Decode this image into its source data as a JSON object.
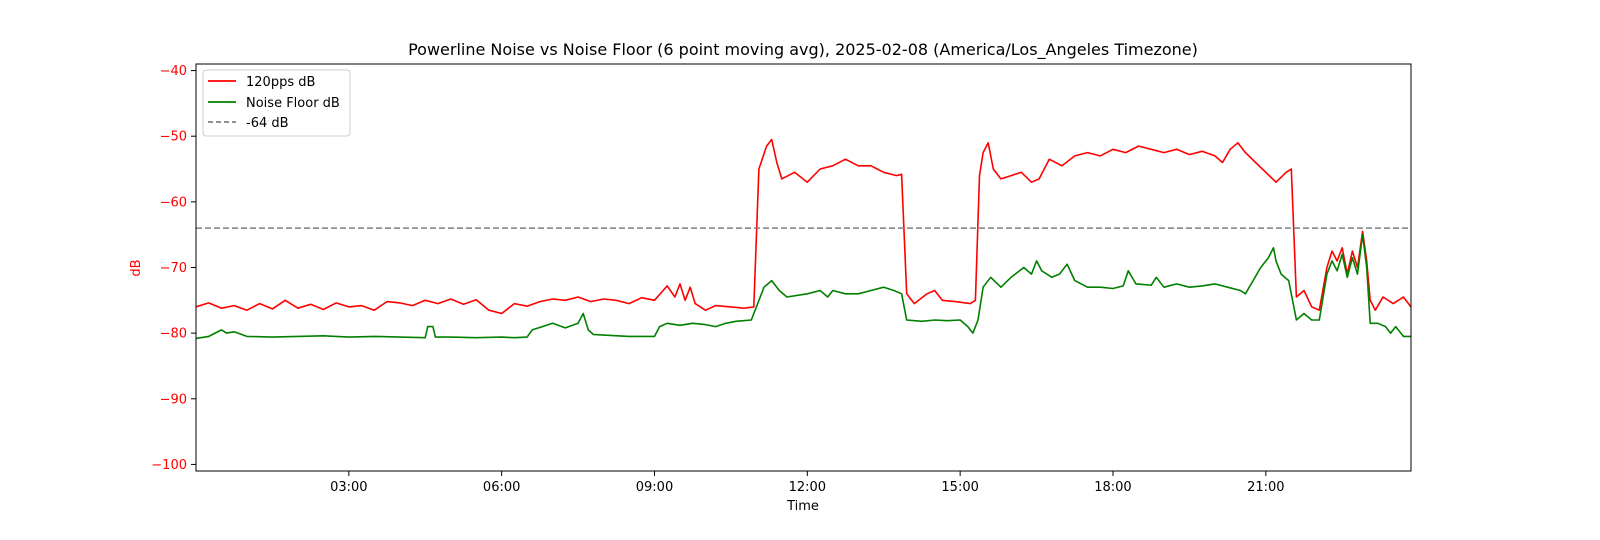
{
  "chart_data": {
    "type": "line",
    "title": "Powerline Noise vs Noise Floor (6 point moving avg), 2025-02-08 (America/Los_Angeles Timezone)",
    "xlabel": "Time",
    "ylabel": "dB",
    "x_unit": "hour of day",
    "xlim": [
      0.0,
      23.85
    ],
    "ylim": [
      -101,
      -39
    ],
    "x_ticks": [
      {
        "value": 3,
        "label": "03:00"
      },
      {
        "value": 6,
        "label": "06:00"
      },
      {
        "value": 9,
        "label": "09:00"
      },
      {
        "value": 12,
        "label": "12:00"
      },
      {
        "value": 15,
        "label": "15:00"
      },
      {
        "value": 18,
        "label": "18:00"
      },
      {
        "value": 21,
        "label": "21:00"
      }
    ],
    "y_ticks": [
      {
        "value": -40,
        "label": "−40"
      },
      {
        "value": -50,
        "label": "−50"
      },
      {
        "value": -60,
        "label": "−60"
      },
      {
        "value": -70,
        "label": "−70"
      },
      {
        "value": -80,
        "label": "−80"
      },
      {
        "value": -90,
        "label": "−90"
      },
      {
        "value": -100,
        "label": "−100"
      }
    ],
    "ylabel_color": "#ff0000",
    "grid": false,
    "legend_position": "upper-left",
    "series": [
      {
        "name": "120pps dB",
        "color": "#ff0000",
        "style": "solid",
        "points": [
          [
            0.0,
            -76.0
          ],
          [
            0.25,
            -75.4
          ],
          [
            0.5,
            -76.2
          ],
          [
            0.75,
            -75.8
          ],
          [
            1.0,
            -76.5
          ],
          [
            1.25,
            -75.5
          ],
          [
            1.5,
            -76.3
          ],
          [
            1.75,
            -75.0
          ],
          [
            2.0,
            -76.2
          ],
          [
            2.25,
            -75.6
          ],
          [
            2.5,
            -76.4
          ],
          [
            2.75,
            -75.4
          ],
          [
            3.0,
            -76.0
          ],
          [
            3.25,
            -75.8
          ],
          [
            3.5,
            -76.5
          ],
          [
            3.75,
            -75.2
          ],
          [
            4.0,
            -75.4
          ],
          [
            4.25,
            -75.8
          ],
          [
            4.5,
            -75.0
          ],
          [
            4.75,
            -75.5
          ],
          [
            5.0,
            -74.8
          ],
          [
            5.25,
            -75.6
          ],
          [
            5.5,
            -74.9
          ],
          [
            5.75,
            -76.5
          ],
          [
            6.0,
            -77.0
          ],
          [
            6.25,
            -75.5
          ],
          [
            6.5,
            -75.9
          ],
          [
            6.75,
            -75.2
          ],
          [
            7.0,
            -74.8
          ],
          [
            7.25,
            -75.0
          ],
          [
            7.5,
            -74.5
          ],
          [
            7.75,
            -75.2
          ],
          [
            8.0,
            -74.8
          ],
          [
            8.25,
            -75.0
          ],
          [
            8.5,
            -75.5
          ],
          [
            8.75,
            -74.6
          ],
          [
            9.0,
            -75.0
          ],
          [
            9.25,
            -72.8
          ],
          [
            9.4,
            -74.5
          ],
          [
            9.5,
            -72.5
          ],
          [
            9.6,
            -75.0
          ],
          [
            9.7,
            -73.0
          ],
          [
            9.8,
            -75.5
          ],
          [
            10.0,
            -76.5
          ],
          [
            10.2,
            -75.8
          ],
          [
            10.5,
            -76.0
          ],
          [
            10.75,
            -76.2
          ],
          [
            10.95,
            -76.0
          ],
          [
            11.05,
            -55.0
          ],
          [
            11.2,
            -51.5
          ],
          [
            11.3,
            -50.5
          ],
          [
            11.4,
            -54.0
          ],
          [
            11.5,
            -56.5
          ],
          [
            11.75,
            -55.5
          ],
          [
            12.0,
            -57.0
          ],
          [
            12.25,
            -55.0
          ],
          [
            12.5,
            -54.5
          ],
          [
            12.75,
            -53.5
          ],
          [
            13.0,
            -54.5
          ],
          [
            13.25,
            -54.5
          ],
          [
            13.5,
            -55.5
          ],
          [
            13.75,
            -56.0
          ],
          [
            13.85,
            -55.8
          ],
          [
            13.95,
            -74.0
          ],
          [
            14.1,
            -75.5
          ],
          [
            14.35,
            -74.0
          ],
          [
            14.5,
            -73.5
          ],
          [
            14.65,
            -75.0
          ],
          [
            14.9,
            -75.2
          ],
          [
            15.2,
            -75.5
          ],
          [
            15.3,
            -75.0
          ],
          [
            15.38,
            -56.0
          ],
          [
            15.45,
            -52.5
          ],
          [
            15.55,
            -51.0
          ],
          [
            15.65,
            -55.0
          ],
          [
            15.8,
            -56.5
          ],
          [
            16.0,
            -56.0
          ],
          [
            16.2,
            -55.5
          ],
          [
            16.4,
            -57.0
          ],
          [
            16.55,
            -56.5
          ],
          [
            16.75,
            -53.5
          ],
          [
            17.0,
            -54.5
          ],
          [
            17.25,
            -53.0
          ],
          [
            17.5,
            -52.5
          ],
          [
            17.75,
            -53.0
          ],
          [
            18.0,
            -52.0
          ],
          [
            18.25,
            -52.5
          ],
          [
            18.5,
            -51.5
          ],
          [
            18.75,
            -52.0
          ],
          [
            19.0,
            -52.5
          ],
          [
            19.25,
            -52.0
          ],
          [
            19.5,
            -52.8
          ],
          [
            19.75,
            -52.3
          ],
          [
            20.0,
            -53.0
          ],
          [
            20.15,
            -54.0
          ],
          [
            20.3,
            -52.0
          ],
          [
            20.45,
            -51.0
          ],
          [
            20.6,
            -52.5
          ],
          [
            20.8,
            -54.0
          ],
          [
            21.0,
            -55.5
          ],
          [
            21.2,
            -57.0
          ],
          [
            21.4,
            -55.5
          ],
          [
            21.5,
            -55.0
          ],
          [
            21.6,
            -74.5
          ],
          [
            21.75,
            -73.5
          ],
          [
            21.9,
            -76.0
          ],
          [
            22.05,
            -76.5
          ],
          [
            22.2,
            -70.0
          ],
          [
            22.3,
            -67.5
          ],
          [
            22.4,
            -69.0
          ],
          [
            22.5,
            -67.0
          ],
          [
            22.6,
            -71.0
          ],
          [
            22.7,
            -67.5
          ],
          [
            22.8,
            -70.0
          ],
          [
            22.9,
            -64.5
          ],
          [
            22.98,
            -69.0
          ],
          [
            23.05,
            -75.0
          ],
          [
            23.15,
            -76.5
          ],
          [
            23.3,
            -74.5
          ],
          [
            23.5,
            -75.5
          ],
          [
            23.7,
            -74.5
          ],
          [
            23.85,
            -76.0
          ]
        ]
      },
      {
        "name": "Noise Floor dB",
        "color": "#008000",
        "style": "solid",
        "points": [
          [
            0.0,
            -80.8
          ],
          [
            0.25,
            -80.5
          ],
          [
            0.5,
            -79.5
          ],
          [
            0.6,
            -80.0
          ],
          [
            0.75,
            -79.8
          ],
          [
            1.0,
            -80.5
          ],
          [
            1.5,
            -80.6
          ],
          [
            2.0,
            -80.5
          ],
          [
            2.5,
            -80.4
          ],
          [
            3.0,
            -80.6
          ],
          [
            3.5,
            -80.5
          ],
          [
            4.0,
            -80.6
          ],
          [
            4.5,
            -80.7
          ],
          [
            4.55,
            -79.0
          ],
          [
            4.65,
            -79.0
          ],
          [
            4.7,
            -80.6
          ],
          [
            5.0,
            -80.6
          ],
          [
            5.5,
            -80.7
          ],
          [
            6.0,
            -80.6
          ],
          [
            6.25,
            -80.7
          ],
          [
            6.5,
            -80.6
          ],
          [
            6.6,
            -79.5
          ],
          [
            6.8,
            -79.0
          ],
          [
            7.0,
            -78.5
          ],
          [
            7.25,
            -79.2
          ],
          [
            7.5,
            -78.5
          ],
          [
            7.6,
            -77.0
          ],
          [
            7.7,
            -79.5
          ],
          [
            7.8,
            -80.2
          ],
          [
            8.0,
            -80.3
          ],
          [
            8.5,
            -80.5
          ],
          [
            9.0,
            -80.5
          ],
          [
            9.1,
            -79.0
          ],
          [
            9.25,
            -78.5
          ],
          [
            9.5,
            -78.8
          ],
          [
            9.75,
            -78.5
          ],
          [
            10.0,
            -78.7
          ],
          [
            10.2,
            -79.0
          ],
          [
            10.4,
            -78.5
          ],
          [
            10.6,
            -78.2
          ],
          [
            10.9,
            -78.0
          ],
          [
            11.0,
            -76.0
          ],
          [
            11.15,
            -73.0
          ],
          [
            11.3,
            -72.0
          ],
          [
            11.45,
            -73.5
          ],
          [
            11.6,
            -74.5
          ],
          [
            12.0,
            -74.0
          ],
          [
            12.25,
            -73.5
          ],
          [
            12.4,
            -74.5
          ],
          [
            12.5,
            -73.5
          ],
          [
            12.75,
            -74.0
          ],
          [
            13.0,
            -74.0
          ],
          [
            13.25,
            -73.5
          ],
          [
            13.5,
            -73.0
          ],
          [
            13.7,
            -73.5
          ],
          [
            13.85,
            -74.0
          ],
          [
            13.95,
            -78.0
          ],
          [
            14.25,
            -78.2
          ],
          [
            14.5,
            -78.0
          ],
          [
            14.75,
            -78.1
          ],
          [
            15.0,
            -78.0
          ],
          [
            15.15,
            -79.0
          ],
          [
            15.25,
            -80.0
          ],
          [
            15.35,
            -78.0
          ],
          [
            15.45,
            -73.0
          ],
          [
            15.6,
            -71.5
          ],
          [
            15.8,
            -73.0
          ],
          [
            16.0,
            -71.5
          ],
          [
            16.25,
            -70.0
          ],
          [
            16.4,
            -71.0
          ],
          [
            16.5,
            -69.0
          ],
          [
            16.6,
            -70.5
          ],
          [
            16.8,
            -71.5
          ],
          [
            16.95,
            -71.0
          ],
          [
            17.1,
            -69.5
          ],
          [
            17.25,
            -72.0
          ],
          [
            17.5,
            -73.0
          ],
          [
            17.75,
            -73.0
          ],
          [
            18.0,
            -73.2
          ],
          [
            18.2,
            -72.8
          ],
          [
            18.3,
            -70.5
          ],
          [
            18.45,
            -72.5
          ],
          [
            18.75,
            -72.7
          ],
          [
            18.85,
            -71.5
          ],
          [
            19.0,
            -73.0
          ],
          [
            19.25,
            -72.5
          ],
          [
            19.5,
            -73.0
          ],
          [
            19.75,
            -72.8
          ],
          [
            20.0,
            -72.5
          ],
          [
            20.25,
            -73.0
          ],
          [
            20.5,
            -73.5
          ],
          [
            20.6,
            -74.0
          ],
          [
            20.75,
            -72.0
          ],
          [
            20.9,
            -70.0
          ],
          [
            21.05,
            -68.5
          ],
          [
            21.15,
            -67.0
          ],
          [
            21.2,
            -69.0
          ],
          [
            21.3,
            -71.0
          ],
          [
            21.45,
            -72.0
          ],
          [
            21.6,
            -78.0
          ],
          [
            21.75,
            -77.0
          ],
          [
            21.9,
            -78.0
          ],
          [
            22.05,
            -78.0
          ],
          [
            22.2,
            -71.0
          ],
          [
            22.3,
            -69.0
          ],
          [
            22.4,
            -70.5
          ],
          [
            22.5,
            -68.0
          ],
          [
            22.6,
            -71.5
          ],
          [
            22.7,
            -68.5
          ],
          [
            22.8,
            -71.0
          ],
          [
            22.9,
            -65.0
          ],
          [
            22.98,
            -70.0
          ],
          [
            23.05,
            -78.5
          ],
          [
            23.2,
            -78.5
          ],
          [
            23.35,
            -79.0
          ],
          [
            23.45,
            -80.0
          ],
          [
            23.55,
            -79.0
          ],
          [
            23.7,
            -80.5
          ],
          [
            23.85,
            -80.5
          ]
        ]
      },
      {
        "name": "-64 dB",
        "color": "#808080",
        "style": "dashed",
        "constant": -64
      }
    ]
  }
}
